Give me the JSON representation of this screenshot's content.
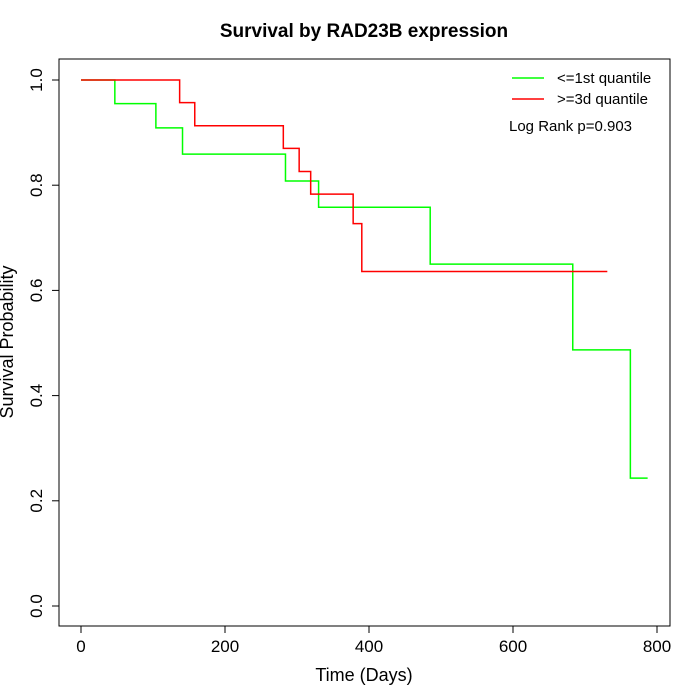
{
  "chart_data": {
    "type": "line",
    "step": true,
    "title": "Survival by RAD23B expression",
    "xlabel": "Time (Days)",
    "ylabel": "Survival Probability",
    "xlim": [
      0,
      800
    ],
    "ylim": [
      0,
      1
    ],
    "x_ticks": [
      0,
      200,
      400,
      600,
      800
    ],
    "y_ticks": [
      0.0,
      0.2,
      0.4,
      0.6,
      0.8,
      1.0
    ],
    "x_tick_labels": [
      "0",
      "200",
      "400",
      "600",
      "800"
    ],
    "y_tick_labels": [
      "0.0",
      "0.2",
      "0.4",
      "0.6",
      "0.8",
      "1.0"
    ],
    "grid": false,
    "legend_position": "top-right",
    "annotation": "Log Rank p=0.903",
    "series": [
      {
        "name": "<=1st quantile",
        "color": "#00ff00",
        "x": [
          0,
          47,
          104,
          141,
          284,
          330,
          485,
          683,
          763,
          787
        ],
        "y": [
          1.0,
          0.955,
          0.909,
          0.859,
          0.808,
          0.758,
          0.65,
          0.487,
          0.243,
          0.243
        ]
      },
      {
        "name": ">=3d quantile",
        "color": "#ff0000",
        "x": [
          0,
          137,
          158,
          281,
          303,
          319,
          378,
          390,
          731
        ],
        "y": [
          1.0,
          0.957,
          0.913,
          0.87,
          0.826,
          0.783,
          0.727,
          0.636,
          0.636
        ]
      }
    ]
  }
}
